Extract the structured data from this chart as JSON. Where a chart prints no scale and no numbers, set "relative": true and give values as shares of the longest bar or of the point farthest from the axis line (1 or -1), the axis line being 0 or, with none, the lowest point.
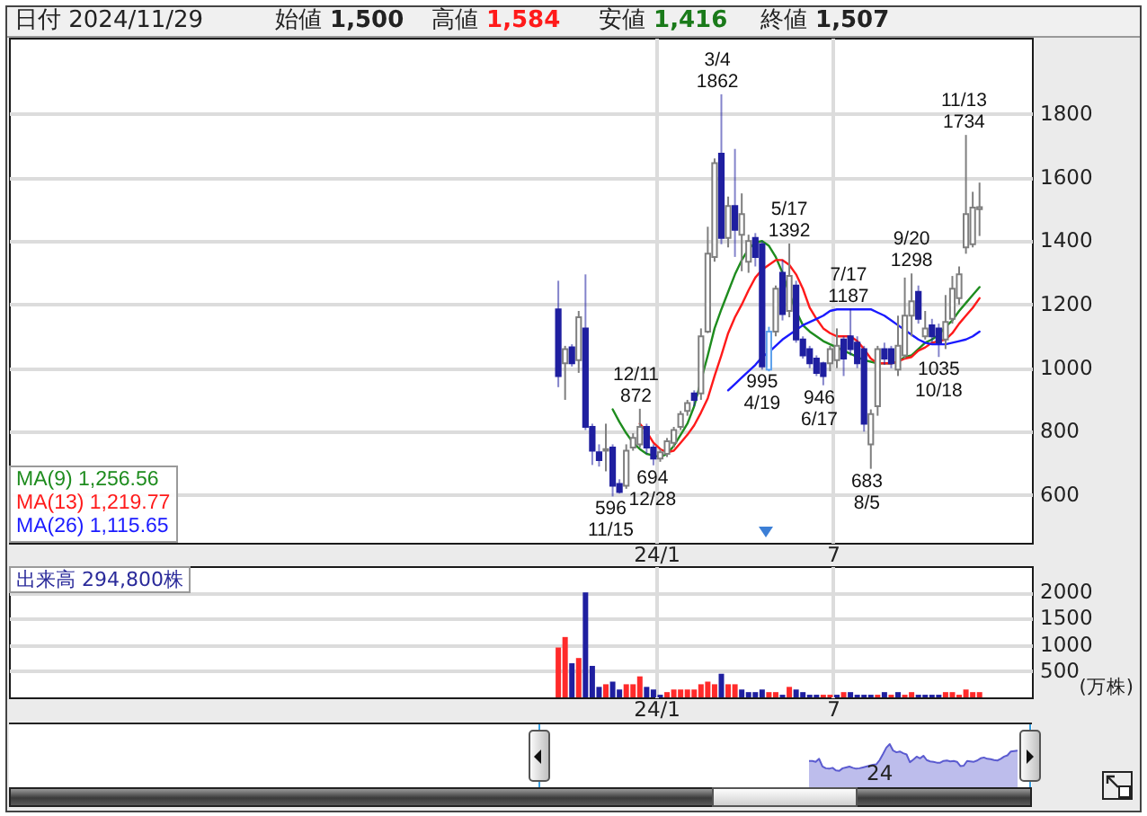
{
  "chart_data": [
    {
      "type": "candlestick",
      "annotations": [
        "日付 2024/11/29",
        "始値 1,500",
        "高値 1,584",
        "安値 1,416",
        "終値 1,507",
        {
          "text": "596\n11/15",
          "x": "2023-11-15",
          "y": 596
        },
        {
          "text": "12/11\n872",
          "x": "2023-12-11",
          "y": 872
        },
        {
          "text": "694\n12/28",
          "x": "2023-12-28",
          "y": 694
        },
        {
          "text": "3/4\n1862",
          "x": "2024-03-04",
          "y": 1862
        },
        {
          "text": "995\n4/19",
          "x": "2024-04-19",
          "y": 995
        },
        {
          "text": "5/17\n1392",
          "x": "2024-05-17",
          "y": 1392
        },
        {
          "text": "946\n6/17",
          "x": "2024-06-17",
          "y": 946
        },
        {
          "text": "7/17\n1187",
          "x": "2024-07-17",
          "y": 1187
        },
        {
          "text": "683\n8/5",
          "x": "2024-08-05",
          "y": 683
        },
        {
          "text": "9/20\n1298",
          "x": "2024-09-20",
          "y": 1298
        },
        {
          "text": "1035\n10/18",
          "x": "2024-10-18",
          "y": 1035
        },
        {
          "text": "11/13\n1734",
          "x": "2024-11-13",
          "y": 1734
        }
      ],
      "x": [
        "2023-09-22",
        "2023-09-29",
        "2023-10-06",
        "2023-10-13",
        "2023-10-20",
        "2023-10-27",
        "2023-11-03",
        "2023-11-10",
        "2023-11-17",
        "2023-11-24",
        "2023-12-01",
        "2023-12-08",
        "2023-12-15",
        "2023-12-22",
        "2023-12-29",
        "2024-01-05",
        "2024-01-12",
        "2024-01-19",
        "2024-01-26",
        "2024-02-02",
        "2024-02-09",
        "2024-02-16",
        "2024-02-23",
        "2024-03-01",
        "2024-03-08",
        "2024-03-15",
        "2024-03-22",
        "2024-03-29",
        "2024-04-05",
        "2024-04-12",
        "2024-04-19",
        "2024-04-26",
        "2024-05-03",
        "2024-05-10",
        "2024-05-17",
        "2024-05-24",
        "2024-05-31",
        "2024-06-07",
        "2024-06-14",
        "2024-06-21",
        "2024-06-28",
        "2024-07-05",
        "2024-07-12",
        "2024-07-19",
        "2024-07-26",
        "2024-08-02",
        "2024-08-09",
        "2024-08-16",
        "2024-08-23",
        "2024-08-30",
        "2024-09-06",
        "2024-09-13",
        "2024-09-20",
        "2024-09-27",
        "2024-10-04",
        "2024-10-11",
        "2024-10-18",
        "2024-10-25",
        "2024-11-01",
        "2024-11-08",
        "2024-11-15",
        "2024-11-22",
        "2024-11-29"
      ],
      "ohlc": [
        [
          1185,
          1275,
          940,
          975
        ],
        [
          1015,
          1070,
          900,
          1060
        ],
        [
          1065,
          1075,
          1005,
          1015
        ],
        [
          1025,
          1180,
          985,
          1160
        ],
        [
          1125,
          1295,
          805,
          815
        ],
        [
          815,
          825,
          695,
          740
        ],
        [
          735,
          760,
          690,
          710
        ],
        [
          740,
          825,
          675,
          745
        ],
        [
          750,
          760,
          596,
          630
        ],
        [
          635,
          650,
          605,
          610
        ],
        [
          630,
          760,
          620,
          740
        ],
        [
          750,
          795,
          740,
          780
        ],
        [
          760,
          872,
          750,
          815
        ],
        [
          815,
          825,
          730,
          750
        ],
        [
          750,
          760,
          694,
          715
        ],
        [
          715,
          745,
          705,
          735
        ],
        [
          730,
          780,
          720,
          770
        ],
        [
          765,
          815,
          750,
          805
        ],
        [
          815,
          865,
          805,
          855
        ],
        [
          865,
          900,
          850,
          890
        ],
        [
          920,
          930,
          880,
          900
        ],
        [
          920,
          1125,
          900,
          1100
        ],
        [
          1115,
          1445,
          1110,
          1360
        ],
        [
          1350,
          1660,
          1335,
          1645
        ],
        [
          1675,
          1862,
          1390,
          1410
        ],
        [
          1410,
          1540,
          1380,
          1510
        ],
        [
          1510,
          1690,
          1350,
          1435
        ],
        [
          1420,
          1550,
          1305,
          1485
        ],
        [
          1335,
          1420,
          1300,
          1400
        ],
        [
          1410,
          1425,
          1320,
          1350
        ],
        [
          1390,
          1400,
          995,
          1005
        ],
        [
          995,
          1130,
          990,
          1115
        ],
        [
          1115,
          1260,
          1100,
          1250
        ],
        [
          1300,
          1340,
          1150,
          1170
        ],
        [
          1180,
          1392,
          1160,
          1290
        ],
        [
          1260,
          1275,
          1080,
          1090
        ],
        [
          1090,
          1100,
          1030,
          1040
        ],
        [
          1060,
          1070,
          1000,
          1015
        ],
        [
          1030,
          1040,
          975,
          985
        ],
        [
          1015,
          1020,
          946,
          975
        ],
        [
          1015,
          1070,
          990,
          1060
        ],
        [
          1025,
          1125,
          1000,
          1070
        ],
        [
          1090,
          1100,
          975,
          1030
        ],
        [
          1100,
          1187,
          1040,
          1060
        ],
        [
          1080,
          1100,
          1000,
          1015
        ],
        [
          1060,
          1070,
          800,
          825
        ],
        [
          760,
          870,
          683,
          855
        ],
        [
          880,
          1070,
          850,
          1060
        ],
        [
          1060,
          1080,
          1010,
          1030
        ],
        [
          1060,
          1070,
          1000,
          1015
        ],
        [
          995,
          1165,
          975,
          1070
        ],
        [
          1040,
          1285,
          1030,
          1165
        ],
        [
          1165,
          1298,
          1100,
          1210
        ],
        [
          1240,
          1260,
          1140,
          1155
        ],
        [
          1100,
          1180,
          1090,
          1125
        ],
        [
          1135,
          1155,
          1080,
          1100
        ],
        [
          1125,
          1140,
          1035,
          1080
        ],
        [
          1090,
          1230,
          1060,
          1145
        ],
        [
          1155,
          1290,
          1140,
          1250
        ],
        [
          1220,
          1320,
          1200,
          1295
        ],
        [
          1380,
          1734,
          1360,
          1485
        ],
        [
          1390,
          1555,
          1380,
          1505
        ],
        [
          1500,
          1584,
          1416,
          1507
        ]
      ],
      "colors": [
        "#1f1fa0",
        "#7f7f7f",
        "#1f1fa0",
        "#7f7f7f",
        "#1f1fa0",
        "#1f1fa0",
        "#1f1fa0",
        "#7f7f7f",
        "#1f1fa0",
        "#1f1fa0",
        "#7f7f7f",
        "#7f7f7f",
        "#7f7f7f",
        "#1f1fa0",
        "#1f1fa0",
        "#7f7f7f",
        "#7f7f7f",
        "#7f7f7f",
        "#7f7f7f",
        "#7f7f7f",
        "#1f1fa0",
        "#7f7f7f",
        "#7f7f7f",
        "#7f7f7f",
        "#1f1fa0",
        "#7f7f7f",
        "#1f1fa0",
        "#7f7f7f",
        "#7f7f7f",
        "#1f1fa0",
        "#1f1fa0",
        "#5ea2ec",
        "#7f7f7f",
        "#1f1fa0",
        "#7f7f7f",
        "#1f1fa0",
        "#1f1fa0",
        "#1f1fa0",
        "#1f1fa0",
        "#1f1fa0",
        "#7f7f7f",
        "#7f7f7f",
        "#1f1fa0",
        "#1f1fa0",
        "#1f1fa0",
        "#1f1fa0",
        "#7f7f7f",
        "#7f7f7f",
        "#1f1fa0",
        "#1f1fa0",
        "#7f7f7f",
        "#7f7f7f",
        "#7f7f7f",
        "#1f1fa0",
        "#7f7f7f",
        "#1f1fa0",
        "#1f1fa0",
        "#7f7f7f",
        "#7f7f7f",
        "#7f7f7f",
        "#7f7f7f",
        "#7f7f7f",
        "#7f7f7f"
      ],
      "series": [
        {
          "name": "MA(9) 1,256.56",
          "type": "line",
          "color": "#1e8c1e",
          "values": [
            null,
            null,
            null,
            null,
            null,
            null,
            null,
            null,
            870,
            830,
            795,
            765,
            745,
            730,
            725,
            720,
            730,
            755,
            790,
            825,
            880,
            null,
            1040,
            1125,
            1185,
            1240,
            1295,
            1340,
            1375,
            1395,
            1400,
            1385,
            1350,
            1300,
            1235,
            1180,
            1135,
            1115,
            1100,
            1085,
            1075,
            1065,
            1055,
            1045,
            1035,
            1025,
            1020,
            1015,
            1015,
            1015,
            1020,
            1035,
            1040,
            1060,
            1080,
            1090,
            1105,
            1130,
            1150,
            1180,
            1205,
            1230,
            1255
          ]
        },
        {
          "name": "MA(13) 1,219.77",
          "type": "line",
          "color": "#ff1a1a",
          "values": [
            null,
            null,
            null,
            null,
            null,
            null,
            null,
            null,
            null,
            null,
            null,
            null,
            825,
            800,
            765,
            745,
            735,
            740,
            765,
            790,
            820,
            860,
            905,
            975,
            1040,
            1110,
            1160,
            1200,
            1245,
            1285,
            1310,
            1325,
            1340,
            1340,
            1325,
            1295,
            1250,
            1190,
            1155,
            1125,
            1110,
            1100,
            1100,
            1100,
            1085,
            1060,
            1030,
            1015,
            1015,
            1015,
            1020,
            1030,
            1035,
            1055,
            1065,
            1080,
            1085,
            1090,
            1110,
            1140,
            1165,
            1190,
            1220
          ]
        },
        {
          "name": "MA(26) 1,115.65",
          "type": "line",
          "color": "#1a1aff",
          "values": [
            null,
            null,
            null,
            null,
            null,
            null,
            null,
            null,
            null,
            null,
            null,
            null,
            null,
            null,
            null,
            null,
            null,
            null,
            null,
            null,
            null,
            null,
            null,
            null,
            null,
            930,
            950,
            970,
            990,
            1010,
            1035,
            1050,
            1070,
            1090,
            1105,
            1120,
            1135,
            1145,
            1155,
            1165,
            1180,
            1185,
            1185,
            1185,
            1185,
            1185,
            1185,
            1175,
            1165,
            1150,
            1135,
            1120,
            1105,
            1090,
            1080,
            1075,
            1075,
            1075,
            1080,
            1085,
            1090,
            1100,
            1115
          ]
        }
      ],
      "xlim": [
        "2022-03-05",
        "2025-01-22"
      ],
      "xticks": [
        {
          "value": "2024-01-01",
          "label": "24/1"
        },
        {
          "value": "2024-07-01",
          "label": "7"
        }
      ],
      "ylim": [
        450,
        2040
      ],
      "yticks": [
        600,
        800,
        1000,
        1200,
        1400,
        1600,
        1800
      ],
      "grid": true,
      "legend": "bottom left"
    },
    {
      "type": "bar",
      "title": "出来高 294,800株",
      "ylabel": "(万株)",
      "x": [
        "2023-09-22",
        "2023-09-29",
        "2023-10-06",
        "2023-10-13",
        "2023-10-20",
        "2023-10-27",
        "2023-11-03",
        "2023-11-10",
        "2023-11-17",
        "2023-11-24",
        "2023-12-01",
        "2023-12-08",
        "2023-12-15",
        "2023-12-22",
        "2023-12-29",
        "2024-01-05",
        "2024-01-12",
        "2024-01-19",
        "2024-01-26",
        "2024-02-02",
        "2024-02-09",
        "2024-02-16",
        "2024-02-23",
        "2024-03-01",
        "2024-03-08",
        "2024-03-15",
        "2024-03-22",
        "2024-03-29",
        "2024-04-05",
        "2024-04-12",
        "2024-04-19",
        "2024-04-26",
        "2024-05-03",
        "2024-05-10",
        "2024-05-17",
        "2024-05-24",
        "2024-05-31",
        "2024-06-07",
        "2024-06-14",
        "2024-06-21",
        "2024-06-28",
        "2024-07-05",
        "2024-07-12",
        "2024-07-19",
        "2024-07-26",
        "2024-08-02",
        "2024-08-09",
        "2024-08-16",
        "2024-08-23",
        "2024-08-30",
        "2024-09-06",
        "2024-09-13",
        "2024-09-20",
        "2024-09-27",
        "2024-10-04",
        "2024-10-11",
        "2024-10-18",
        "2024-10-25",
        "2024-11-01",
        "2024-11-08",
        "2024-11-15",
        "2024-11-22",
        "2024-11-29"
      ],
      "values": [
        950,
        1150,
        650,
        750,
        2000,
        600,
        200,
        250,
        300,
        150,
        250,
        250,
        400,
        200,
        150,
        50,
        100,
        150,
        150,
        150,
        150,
        250,
        300,
        250,
        450,
        250,
        250,
        150,
        100,
        100,
        150,
        100,
        100,
        50,
        200,
        150,
        100,
        50,
        50,
        50,
        50,
        50,
        100,
        100,
        50,
        50,
        50,
        50,
        100,
        50,
        100,
        50,
        100,
        50,
        50,
        50,
        50,
        100,
        100,
        50,
        150,
        100,
        100
      ],
      "colors": [
        "#ff2a2a",
        "#ff2a2a",
        "#1f1fa0",
        "#ff2a2a",
        "#1f1fa0",
        "#1f1fa0",
        "#1f1fa0",
        "#ff2a2a",
        "#1f1fa0",
        "#1f1fa0",
        "#ff2a2a",
        "#ff2a2a",
        "#ff2a2a",
        "#1f1fa0",
        "#1f1fa0",
        "#1f1fa0",
        "#ff2a2a",
        "#ff2a2a",
        "#ff2a2a",
        "#ff2a2a",
        "#ff2a2a",
        "#ff2a2a",
        "#ff2a2a",
        "#ff2a2a",
        "#1f1fa0",
        "#ff2a2a",
        "#ff2a2a",
        "#1f1fa0",
        "#1f1fa0",
        "#1f1fa0",
        "#1f1fa0",
        "#ff2a2a",
        "#ff2a2a",
        "#1f1fa0",
        "#ff2a2a",
        "#1f1fa0",
        "#1f1fa0",
        "#1f1fa0",
        "#1f1fa0",
        "#ff2a2a",
        "#ff2a2a",
        "#1f1fa0",
        "#ff2a2a",
        "#1f1fa0",
        "#1f1fa0",
        "#1f1fa0",
        "#1f1fa0",
        "#ff2a2a",
        "#1f1fa0",
        "#ff2a2a",
        "#1f1fa0",
        "#ff2a2a",
        "#ff2a2a",
        "#1f1fa0",
        "#1f1fa0",
        "#1f1fa0",
        "#1f1fa0",
        "#ff2a2a",
        "#ff2a2a",
        "#ff2a2a",
        "#ff2a2a",
        "#ff2a2a",
        "#ff2a2a"
      ],
      "xlim": [
        "2022-03-05",
        "2025-01-22"
      ],
      "xticks": [
        {
          "value": "2024-01-01",
          "label": "24/1"
        },
        {
          "value": "2024-07-01",
          "label": "7"
        }
      ],
      "ylim": [
        0,
        2500
      ],
      "yticks": [
        500,
        1000,
        1500,
        2000
      ],
      "grid": true
    },
    {
      "type": "area",
      "relative": true,
      "color": "#5b5bd0",
      "annotations": [
        "24"
      ],
      "categories": [
        null,
        null,
        null,
        null,
        null,
        null,
        null,
        null,
        null,
        null,
        null,
        null,
        null,
        null,
        null,
        null,
        null,
        null,
        null,
        null,
        null,
        null,
        null,
        null,
        null,
        null,
        null,
        null,
        null,
        null,
        null,
        null,
        null,
        null,
        null,
        null,
        null,
        null,
        null,
        null,
        null,
        null,
        null,
        null,
        null,
        null,
        null,
        null,
        null,
        null,
        null,
        null,
        null,
        null,
        null,
        null,
        null,
        null,
        null,
        null,
        null,
        null,
        null
      ],
      "values": [
        0.61,
        0.61,
        0.59,
        0.66,
        0.48,
        0.44,
        0.43,
        0.45,
        0.39,
        0.38,
        0.44,
        0.46,
        0.48,
        0.45,
        0.43,
        0.44,
        0.46,
        0.48,
        0.5,
        0.52,
        0.53,
        0.63,
        0.77,
        0.92,
        1.0,
        0.85,
        0.81,
        0.83,
        0.79,
        0.76,
        0.58,
        0.64,
        0.71,
        0.67,
        0.73,
        0.63,
        0.6,
        0.59,
        0.57,
        0.57,
        0.61,
        0.62,
        0.6,
        0.61,
        0.59,
        0.49,
        0.5,
        0.61,
        0.6,
        0.59,
        0.62,
        0.67,
        0.69,
        0.66,
        0.65,
        0.63,
        0.62,
        0.66,
        0.71,
        0.74,
        0.83,
        0.84,
        0.85
      ]
    }
  ]
}
